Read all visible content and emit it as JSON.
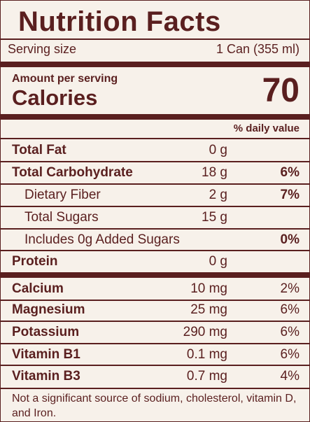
{
  "title": "Nutrition Facts",
  "serving": {
    "label": "Serving size",
    "value": "1 Can (355 ml)"
  },
  "calories": {
    "amount_per_serving": "Amount per serving",
    "label": "Calories",
    "value": "70"
  },
  "daily_value_header": "% daily value",
  "nutrients": [
    {
      "name": "Total Fat",
      "amount": "0 g",
      "dv": ""
    },
    {
      "name": "Total Carbohydrate",
      "amount": "18 g",
      "dv": "6%"
    },
    {
      "name": "Dietary Fiber",
      "amount": "2 g",
      "dv": "7%"
    },
    {
      "name": "Total Sugars",
      "amount": "15 g",
      "dv": ""
    },
    {
      "name": "Includes 0g Added Sugars",
      "amount": "",
      "dv": "0%"
    },
    {
      "name": "Protein",
      "amount": "0 g",
      "dv": ""
    }
  ],
  "minerals": [
    {
      "name": "Calcium",
      "amount": "10 mg",
      "dv": "2%"
    },
    {
      "name": "Magnesium",
      "amount": "25 mg",
      "dv": "6%"
    },
    {
      "name": "Potassium",
      "amount": "290 mg",
      "dv": "6%"
    },
    {
      "name": "Vitamin B1",
      "amount": "0.1 mg",
      "dv": "6%"
    },
    {
      "name": "Vitamin B3",
      "amount": "0.7 mg",
      "dv": "4%"
    }
  ],
  "footnote": "Not a significant source of sodium, cholesterol, vitamin D, and Iron.",
  "colors": {
    "text": "#5a1f1f",
    "background": "#f7f1ea",
    "rule": "#5a1f1f"
  }
}
